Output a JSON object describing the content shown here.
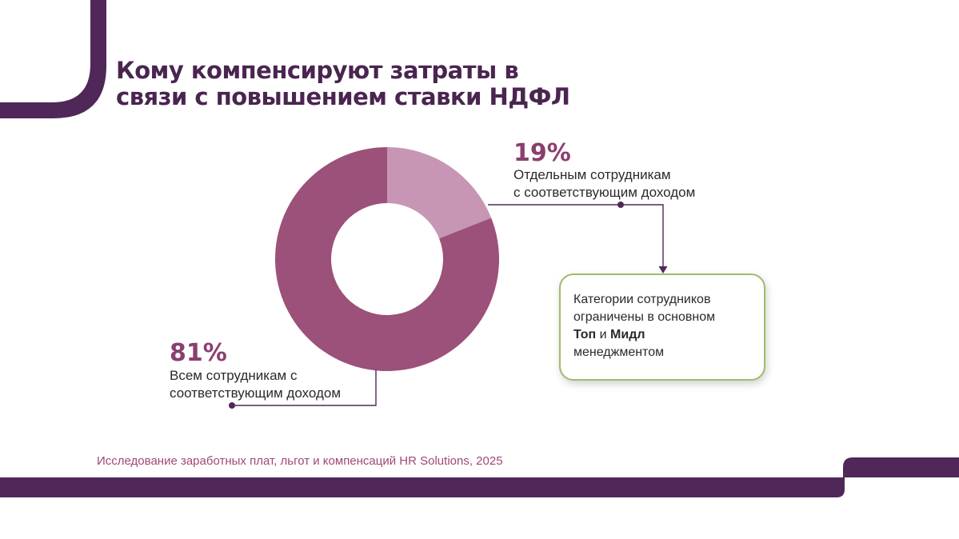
{
  "title": {
    "line1": "Кому компенсируют затраты в",
    "line2": "связи с повышением ставки НДФЛ"
  },
  "chart_data": {
    "type": "pie",
    "donut": true,
    "categories": [
      "Отдельным сотрудникам с соответствующим доходом",
      "Всем сотрудникам с соответствующим доходом"
    ],
    "values": [
      19,
      81
    ],
    "colors": [
      "#c696b4",
      "#9b5179"
    ],
    "labels": [
      {
        "value_text": "19%",
        "lines": [
          "Отдельным сотрудникам",
          "с соответствующим доходом"
        ]
      },
      {
        "value_text": "81%",
        "lines": [
          "Всем сотрудникам с",
          "соответствующим доходом"
        ]
      }
    ],
    "annotation": {
      "line1": "Категории сотрудников",
      "line2": "ограничены в основном",
      "bold1": "Топ",
      "and": " и ",
      "bold2": "Мидл",
      "line4": "менеджментом"
    }
  },
  "source": "Исследование заработных плат, льгот и компенсаций HR Solutions, 2025",
  "colors": {
    "brand_dark": "#4f2859",
    "accent_green": "#9fbc6a",
    "slice_small": "#c696b4",
    "slice_large": "#9b5179"
  }
}
